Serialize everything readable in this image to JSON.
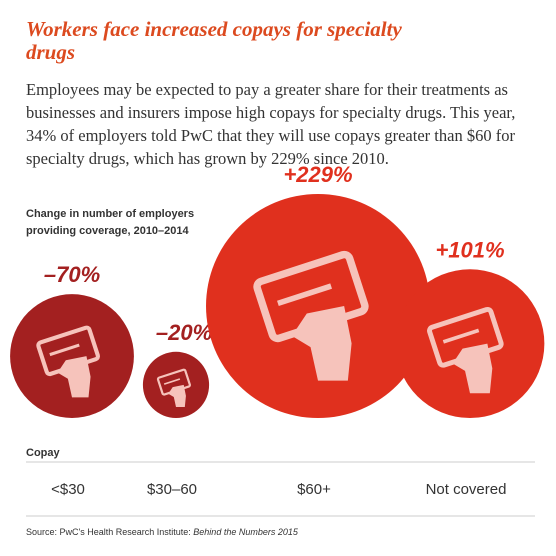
{
  "chart_data": {
    "type": "bubble",
    "title": "Workers face increased copays for specialty drugs",
    "subtitle": "Employees may be expected to pay a greater share for their treatments as businesses and insurers impose high copays for specialty drugs. This year, 34% of employers told PwC that they will  use copays greater than $60 for specialty drugs, which has grown by 229% since 2010.",
    "value_axis_label": "Change in number of employers providing coverage, 2010–2014",
    "x_axis_label": "Copay",
    "categories": [
      "<$30",
      "$30–60",
      "$60+",
      "Not covered"
    ],
    "values": [
      -70,
      -20,
      229,
      101
    ],
    "value_labels": [
      "–70%",
      "–20%",
      "+229%",
      "+101%"
    ],
    "colors": [
      "#a32020",
      "#a32020",
      "#e0301e",
      "#e0301e"
    ],
    "label_colors": [
      "#a32020",
      "#a32020",
      "#e0301e",
      "#e0301e"
    ],
    "source": "Source: PwC's Health Research Institute: ",
    "source_title": "Behind the Numbers 2015"
  }
}
